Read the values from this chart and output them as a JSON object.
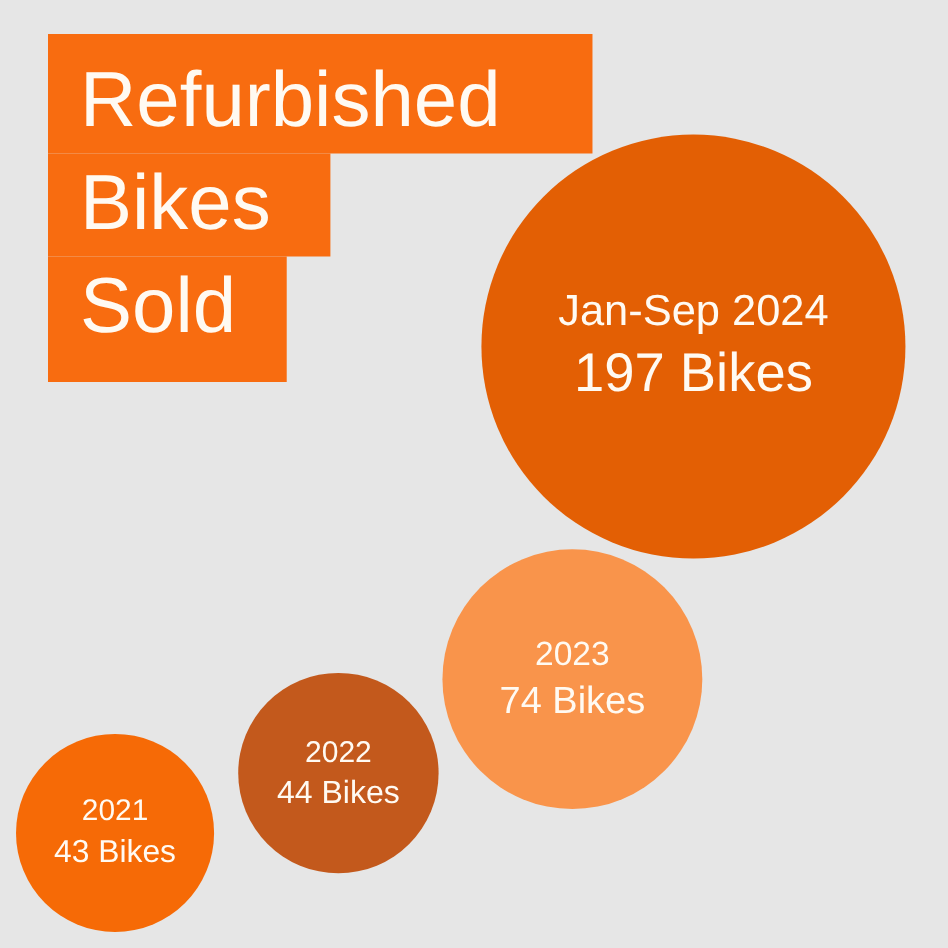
{
  "chart_data": {
    "type": "other",
    "title": "Refurbished Bikes Sold",
    "categories": [
      "2021",
      "2022",
      "2023",
      "Jan-Sep 2024"
    ],
    "values": [
      43,
      44,
      74,
      197
    ],
    "value_labels": [
      "43 Bikes",
      "44 Bikes",
      "74 Bikes",
      "197 Bikes"
    ],
    "colors": [
      "#f66a06",
      "#c3591c",
      "#f9944b",
      "#e35f04"
    ]
  }
}
